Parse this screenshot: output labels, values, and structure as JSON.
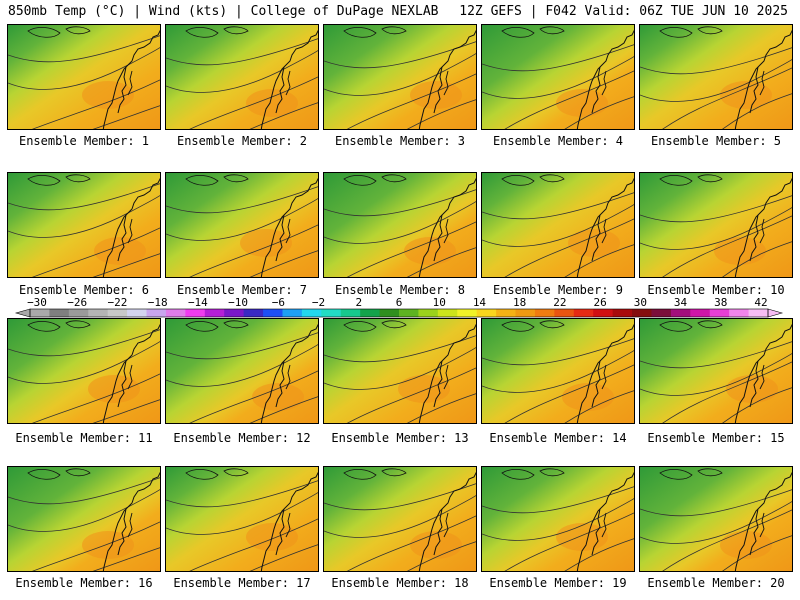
{
  "header": {
    "title_left": "850mb Temp (°C) | Wind (kts) | College of DuPage NEXLAB",
    "title_right": "12Z GEFS | F042 Valid: 06Z TUE JUN 10 2025"
  },
  "panels": [
    {
      "label": "Ensemble Member: 1"
    },
    {
      "label": "Ensemble Member: 2"
    },
    {
      "label": "Ensemble Member: 3"
    },
    {
      "label": "Ensemble Member: 4"
    },
    {
      "label": "Ensemble Member: 5"
    },
    {
      "label": "Ensemble Member: 6"
    },
    {
      "label": "Ensemble Member: 7"
    },
    {
      "label": "Ensemble Member: 8"
    },
    {
      "label": "Ensemble Member: 9"
    },
    {
      "label": "Ensemble Member: 10"
    },
    {
      "label": "Ensemble Member: 11"
    },
    {
      "label": "Ensemble Member: 12"
    },
    {
      "label": "Ensemble Member: 13"
    },
    {
      "label": "Ensemble Member: 14"
    },
    {
      "label": "Ensemble Member: 15"
    },
    {
      "label": "Ensemble Member: 16"
    },
    {
      "label": "Ensemble Member: 17"
    },
    {
      "label": "Ensemble Member: 18"
    },
    {
      "label": "Ensemble Member: 19"
    },
    {
      "label": "Ensemble Member: 20"
    }
  ],
  "colorbar": {
    "tick_labels": [
      "−30",
      "−26",
      "−22",
      "−18",
      "−14",
      "−10",
      "−6",
      "−2",
      "2",
      "6",
      "10",
      "14",
      "18",
      "22",
      "26",
      "30",
      "34",
      "38",
      "42"
    ],
    "colors": [
      "#a9a9a9",
      "#7f7f7f",
      "#9a9a9a",
      "#b4b4b4",
      "#c8c8c8",
      "#d3d3ef",
      "#c9a5ee",
      "#e07ce9",
      "#ef3cef",
      "#b51fd7",
      "#7a18c9",
      "#3a29c2",
      "#1e4ff5",
      "#1ea0f5",
      "#23d7ee",
      "#22dcc4",
      "#17c88d",
      "#13a34b",
      "#2f8f1e",
      "#5eb321",
      "#9bd21c",
      "#cce41b",
      "#f1f227",
      "#f9d51d",
      "#f5b215",
      "#f09a12",
      "#f07c10",
      "#ea5511",
      "#e62a14",
      "#d10f12",
      "#a90b0c",
      "#850e0e",
      "#7b0e3a",
      "#a30e7c",
      "#cf16a8",
      "#e73fd5",
      "#f285ec",
      "#f7bdf4"
    ]
  }
}
